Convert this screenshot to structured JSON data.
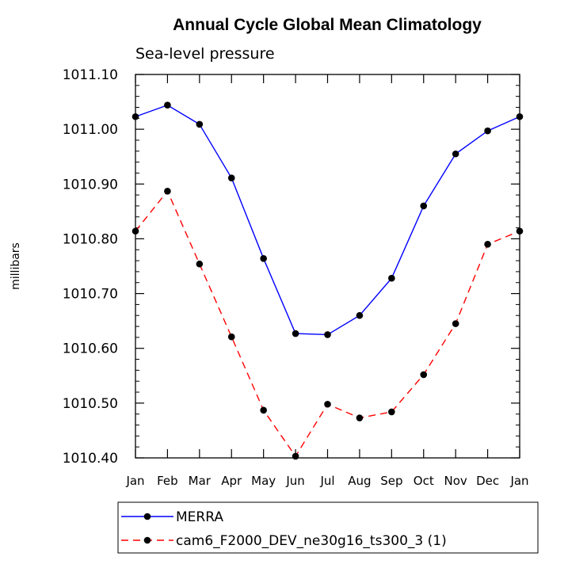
{
  "chart_data": {
    "type": "line",
    "title": "Annual Cycle Global Mean Climatology",
    "subtitle": "Sea-level pressure",
    "ylabel": "millibars",
    "ylim": [
      1010.4,
      1011.1
    ],
    "yticks": [
      "1010.40",
      "1010.50",
      "1010.60",
      "1010.70",
      "1010.80",
      "1010.90",
      "1011.00",
      "1011.10"
    ],
    "categories": [
      "Jan",
      "Feb",
      "Mar",
      "Apr",
      "May",
      "Jun",
      "Jul",
      "Aug",
      "Sep",
      "Oct",
      "Nov",
      "Dec",
      "Jan"
    ],
    "legend_position": "bottom",
    "series": [
      {
        "name": "MERRA",
        "color": "#0000ff",
        "style": "solid",
        "values": [
          1011.023,
          1011.044,
          1011.009,
          1010.911,
          1010.764,
          1010.627,
          1010.625,
          1010.66,
          1010.728,
          1010.86,
          1010.955,
          1010.997,
          1011.023
        ]
      },
      {
        "name": "cam6_F2000_DEV_ne30g16_ts300_3 (1)",
        "color": "#ff0000",
        "style": "dashed",
        "values": [
          1010.814,
          1010.887,
          1010.754,
          1010.621,
          1010.487,
          1010.403,
          1010.498,
          1010.473,
          1010.484,
          1010.552,
          1010.645,
          1010.79,
          1010.814
        ]
      }
    ]
  }
}
